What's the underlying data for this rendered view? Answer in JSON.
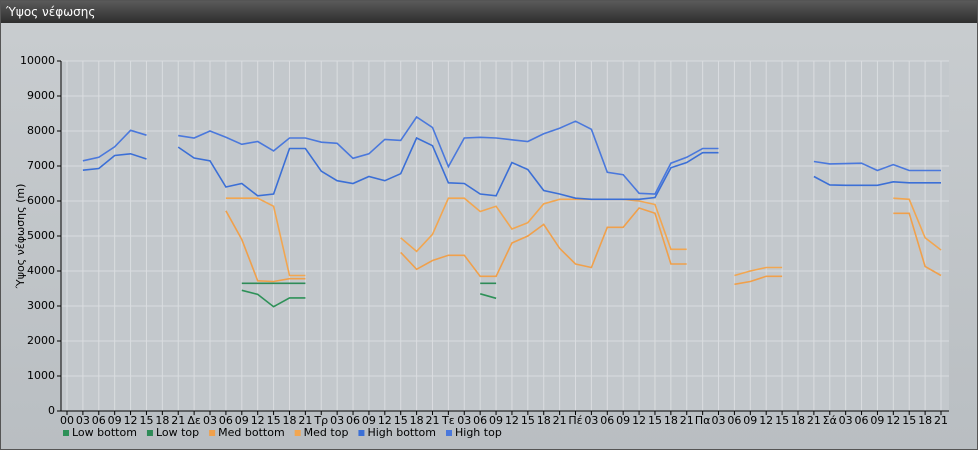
{
  "chart_data": {
    "type": "line",
    "title": "Ύψος νέφωσης",
    "y_label": "Ύψος νέφωσης (m)",
    "categories": [
      "00",
      "03",
      "06",
      "09",
      "12",
      "15",
      "18",
      "21",
      "Δε",
      "03",
      "06",
      "09",
      "12",
      "15",
      "18",
      "21",
      "Τρ",
      "03",
      "06",
      "09",
      "12",
      "15",
      "18",
      "21",
      "Τε",
      "03",
      "06",
      "09",
      "12",
      "15",
      "18",
      "21",
      "Πέ",
      "03",
      "06",
      "09",
      "12",
      "15",
      "18",
      "21",
      "Πα",
      "03",
      "06",
      "09",
      "12",
      "15",
      "18",
      "21",
      "Σά",
      "03",
      "06",
      "09",
      "12",
      "15",
      "18",
      "21"
    ],
    "ylim": [
      0,
      10000
    ],
    "yticks": [
      0,
      1000,
      2000,
      3000,
      4000,
      5000,
      6000,
      7000,
      8000,
      9000,
      10000
    ],
    "grid": true,
    "legend": "bottom",
    "series": [
      {
        "name": "Low bottom",
        "color": "#2e9158",
        "values": [
          null,
          null,
          null,
          null,
          null,
          null,
          null,
          null,
          null,
          null,
          null,
          3450,
          3330,
          2980,
          3230,
          3230,
          null,
          null,
          null,
          null,
          null,
          null,
          null,
          null,
          null,
          null,
          3350,
          3220,
          null,
          null,
          null,
          null,
          null,
          null,
          null,
          null,
          null,
          null,
          null,
          null,
          null,
          null,
          null,
          null,
          null,
          null,
          null,
          null,
          null,
          null,
          null,
          null,
          null,
          null,
          null,
          null
        ]
      },
      {
        "name": "Low top",
        "color": "#2e8b57",
        "values": [
          null,
          null,
          null,
          null,
          null,
          null,
          null,
          null,
          null,
          null,
          null,
          3650,
          3650,
          3650,
          3650,
          3650,
          null,
          null,
          null,
          null,
          null,
          null,
          null,
          null,
          null,
          null,
          3650,
          3650,
          null,
          null,
          null,
          null,
          null,
          null,
          null,
          null,
          null,
          null,
          null,
          null,
          null,
          null,
          null,
          null,
          null,
          null,
          null,
          null,
          null,
          null,
          null,
          null,
          null,
          null,
          null,
          null
        ]
      },
      {
        "name": "Med bottom",
        "color": "#f0a04b",
        "values": [
          null,
          null,
          null,
          null,
          null,
          null,
          null,
          null,
          null,
          null,
          5720,
          4900,
          3720,
          3700,
          3780,
          3780,
          null,
          null,
          null,
          null,
          null,
          4530,
          4050,
          4300,
          4450,
          4450,
          3850,
          3850,
          4800,
          5000,
          5330,
          4650,
          4200,
          4100,
          5250,
          5250,
          5800,
          5650,
          4200,
          4200,
          null,
          null,
          3620,
          3700,
          3850,
          3850,
          null,
          null,
          null,
          null,
          null,
          null,
          5650,
          5650,
          4130,
          3870
        ]
      },
      {
        "name": "Med top",
        "color": "#f2a650",
        "values": [
          null,
          null,
          null,
          null,
          null,
          null,
          null,
          null,
          null,
          null,
          6080,
          6080,
          6080,
          5850,
          3870,
          3870,
          null,
          null,
          null,
          null,
          null,
          4950,
          4560,
          5050,
          6080,
          6080,
          5700,
          5850,
          5200,
          5380,
          5920,
          6050,
          6050,
          6050,
          6050,
          6050,
          6000,
          5900,
          4620,
          4620,
          null,
          null,
          3870,
          4000,
          4100,
          4100,
          null,
          null,
          null,
          null,
          null,
          null,
          6080,
          6050,
          4950,
          4600
        ]
      },
      {
        "name": "High bottom",
        "color": "#3b6fd6",
        "values": [
          null,
          6880,
          6930,
          7300,
          7350,
          7200,
          null,
          7540,
          7230,
          7150,
          6400,
          6500,
          6150,
          6200,
          7500,
          7500,
          6850,
          6580,
          6500,
          6700,
          6580,
          6780,
          7800,
          7580,
          6520,
          6500,
          6200,
          6150,
          7100,
          6900,
          6300,
          6200,
          6080,
          6050,
          6050,
          6050,
          6050,
          6100,
          6950,
          7100,
          7380,
          7380,
          null,
          null,
          null,
          null,
          null,
          6700,
          6460,
          6450,
          6450,
          6450,
          6550,
          6520,
          6520,
          6520
        ]
      },
      {
        "name": "High top",
        "color": "#4a78dc",
        "values": [
          null,
          7150,
          7250,
          7550,
          8020,
          7880,
          null,
          7870,
          7800,
          8000,
          7820,
          7620,
          7700,
          7430,
          7800,
          7800,
          7680,
          7650,
          7220,
          7350,
          7760,
          7730,
          8400,
          8100,
          6980,
          7800,
          7820,
          7800,
          7750,
          7700,
          7920,
          8080,
          8280,
          8050,
          6820,
          6750,
          6220,
          6200,
          7080,
          7250,
          7500,
          7500,
          null,
          null,
          null,
          null,
          null,
          7130,
          7060,
          7070,
          7080,
          6870,
          7040,
          6870,
          6870,
          6870
        ]
      }
    ]
  }
}
